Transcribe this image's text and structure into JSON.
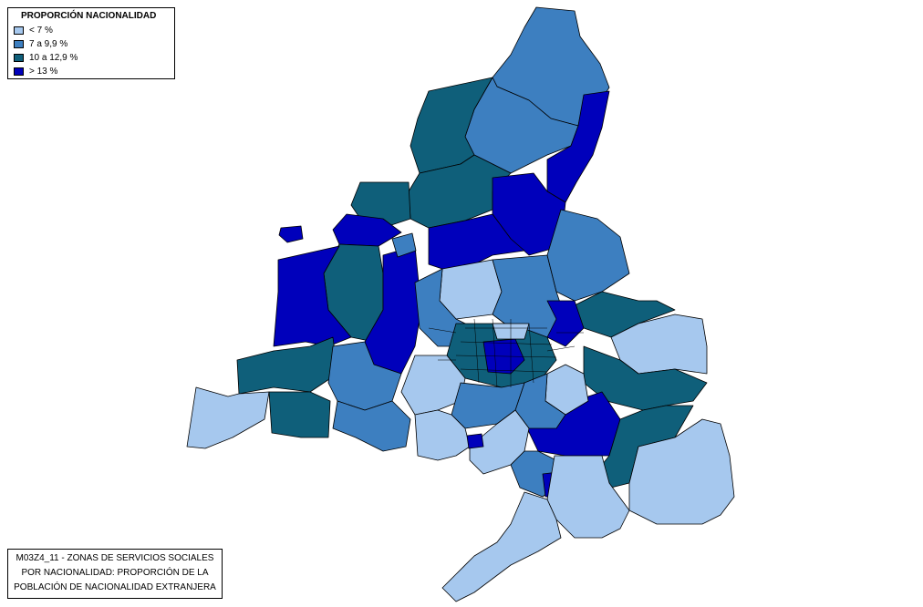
{
  "legend": {
    "title": "PROPORCIÓN NACIONALIDAD",
    "items": [
      {
        "label": "< 7 %",
        "color": "#a6c8ee"
      },
      {
        "label": "7 a 9,9 %",
        "color": "#3d7fc0"
      },
      {
        "label": "10 a 12,9 %",
        "color": "#0f5f7a"
      },
      {
        "label": "> 13 %",
        "color": "#0000bb"
      }
    ]
  },
  "caption": {
    "line1": "M03Z4_11 - ZONAS DE SERVICIOS SOCIALES",
    "line2": "POR NACIONALIDAD: PROPORCIÓN DE LA",
    "line3": "POBLACIÓN DE NACIONALIDAD EXTRANJERA"
  },
  "colors": {
    "c1": "#a6c8ee",
    "c2": "#3d7fc0",
    "c3": "#0f5f7a",
    "c4": "#0000bb",
    "border": "#000000",
    "background": "#ffffff"
  }
}
